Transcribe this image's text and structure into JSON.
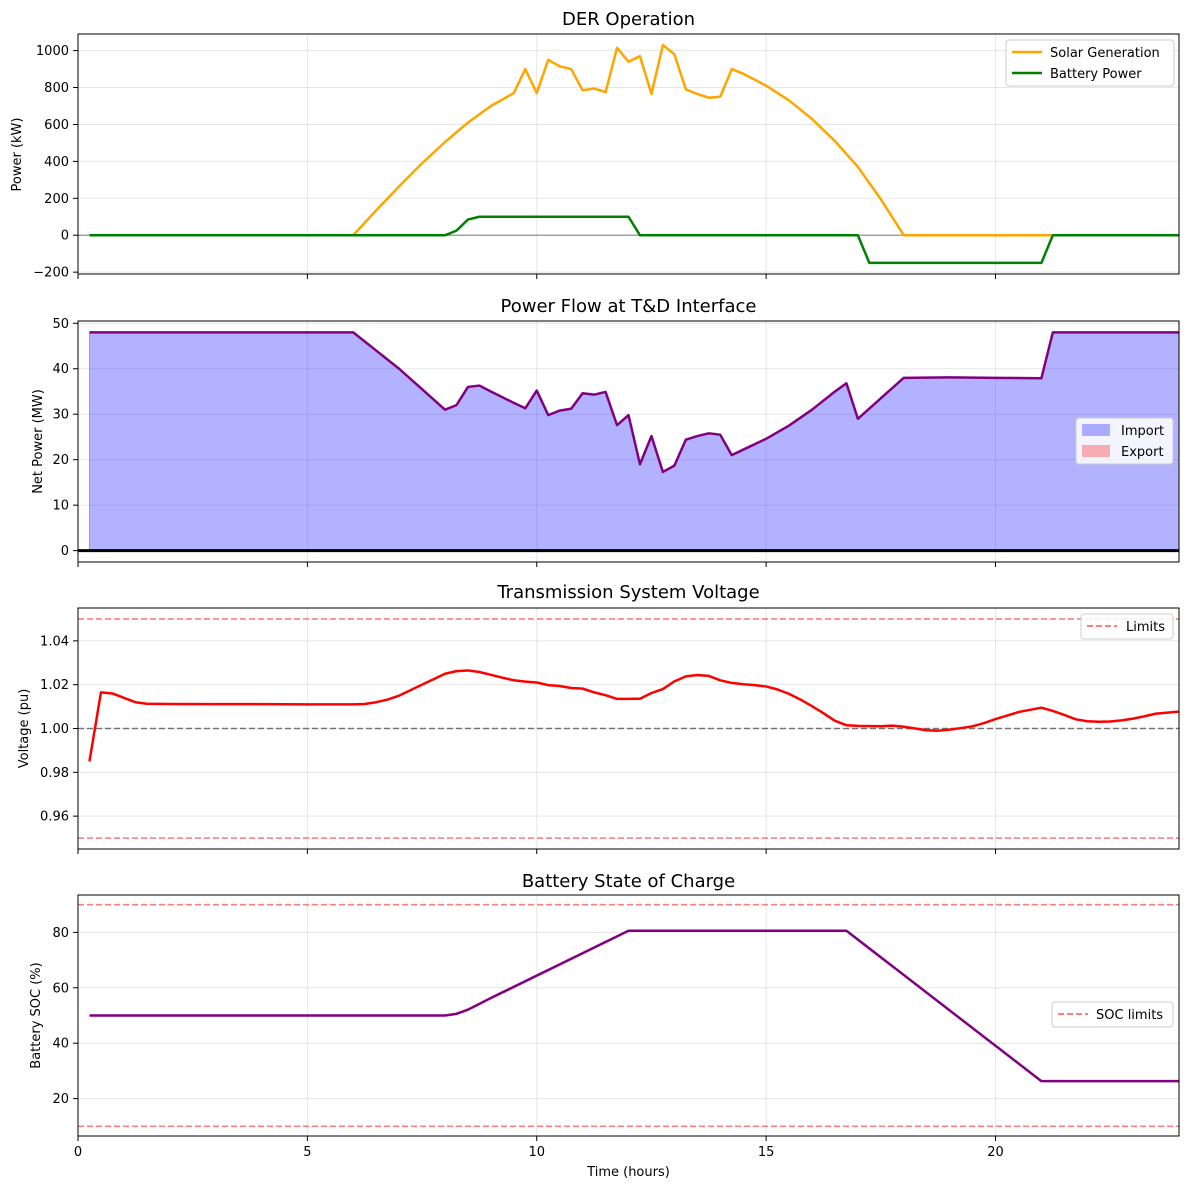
{
  "chart_data": [
    {
      "type": "line",
      "title": "DER Operation",
      "xlabel": "",
      "ylabel": "Power (kW)",
      "xlim": [
        0,
        24
      ],
      "ylim": [
        -210,
        1090
      ],
      "yticks": [
        -200,
        0,
        200,
        400,
        600,
        800,
        1000
      ],
      "ytick_labels": [
        "−200",
        "0",
        "200",
        "400",
        "600",
        "800",
        "1000"
      ],
      "grid": true,
      "legend": "top-right",
      "hlines": [
        {
          "y": 0,
          "color": "#808080",
          "style": "solid"
        }
      ],
      "series": [
        {
          "name": "Solar Generation",
          "color": "#ffa500",
          "x": [
            0.25,
            6.0,
            6.5,
            7.0,
            7.5,
            8.0,
            8.5,
            9.0,
            9.5,
            9.75,
            10.0,
            10.25,
            10.5,
            10.75,
            11.0,
            11.25,
            11.5,
            11.75,
            12.0,
            12.25,
            12.5,
            12.75,
            13.0,
            13.25,
            13.5,
            13.75,
            14.0,
            14.25,
            14.5,
            15.0,
            15.5,
            16.0,
            16.5,
            17.0,
            17.5,
            18.0,
            24.0
          ],
          "y": [
            0,
            0,
            135,
            265,
            390,
            505,
            610,
            700,
            770,
            900,
            770,
            950,
            915,
            900,
            785,
            795,
            775,
            1015,
            940,
            970,
            765,
            1030,
            980,
            790,
            765,
            745,
            750,
            900,
            875,
            810,
            730,
            630,
            510,
            370,
            195,
            0,
            0
          ]
        },
        {
          "name": "Battery Power",
          "color": "#008000",
          "x": [
            0.25,
            8.0,
            8.25,
            8.5,
            8.75,
            9.0,
            11.0,
            12.0,
            12.25,
            17.0,
            17.25,
            21.0,
            21.25,
            24.0
          ],
          "y": [
            0,
            0,
            25,
            85,
            100,
            100,
            100,
            100,
            0,
            0,
            -150,
            -150,
            0,
            0
          ]
        }
      ]
    },
    {
      "type": "area",
      "title": "Power Flow at T&D Interface",
      "xlabel": "",
      "ylabel": "Net Power (MW)",
      "xlim": [
        0,
        24
      ],
      "ylim": [
        -2.5,
        50.5
      ],
      "yticks": [
        0,
        10,
        20,
        30,
        40,
        50
      ],
      "ytick_labels": [
        "0",
        "10",
        "20",
        "30",
        "40",
        "50"
      ],
      "grid": true,
      "legend": "center-right",
      "hlines": [
        {
          "y": 0,
          "color": "#000000",
          "style": "solid"
        }
      ],
      "series": [
        {
          "name": "Net Power",
          "color": "#800080",
          "x": [
            0.25,
            6.0,
            6.5,
            7.0,
            7.5,
            8.0,
            8.25,
            8.5,
            8.75,
            9.0,
            9.5,
            9.75,
            10.0,
            10.25,
            10.5,
            10.75,
            11.0,
            11.25,
            11.5,
            11.75,
            12.0,
            12.25,
            12.5,
            12.75,
            13.0,
            13.25,
            13.5,
            13.75,
            14.0,
            14.25,
            14.5,
            15.0,
            15.5,
            16.0,
            16.5,
            16.75,
            17.0,
            17.5,
            18.0,
            19.0,
            20.0,
            21.0,
            21.25,
            24.0
          ],
          "y": [
            48,
            48,
            44,
            40,
            35.5,
            31,
            32,
            36,
            36.3,
            35,
            32.5,
            31.3,
            35.2,
            29.8,
            30.8,
            31.2,
            34.6,
            34.3,
            34.9,
            27.6,
            29.8,
            19,
            25.2,
            17.3,
            18.7,
            24.4,
            25.2,
            25.8,
            25.5,
            21,
            22.2,
            24.6,
            27.5,
            31,
            35,
            36.8,
            29,
            33.5,
            38,
            38.1,
            38,
            37.9,
            48,
            48
          ]
        }
      ],
      "fills": [
        {
          "name": "Import",
          "color": "#0000ff"
        },
        {
          "name": "Export",
          "color": "#ff0000"
        }
      ]
    },
    {
      "type": "line",
      "title": "Transmission System Voltage",
      "xlabel": "",
      "ylabel": "Voltage (pu)",
      "xlim": [
        0,
        24
      ],
      "ylim": [
        0.945,
        1.055
      ],
      "yticks": [
        0.96,
        0.98,
        1.0,
        1.02,
        1.04
      ],
      "ytick_labels": [
        "0.96",
        "0.98",
        "1.00",
        "1.02",
        "1.04"
      ],
      "grid": true,
      "legend": "top-right",
      "hlines": [
        {
          "y": 1.05,
          "color": "#ff0000",
          "style": "dashed",
          "legend": "Limits"
        },
        {
          "y": 0.95,
          "color": "#ff0000",
          "style": "dashed"
        },
        {
          "y": 1.0,
          "color": "#000000",
          "style": "dashed"
        }
      ],
      "series": [
        {
          "name": "Voltage",
          "color": "#ff0000",
          "x": [
            0.25,
            0.5,
            0.75,
            1.0,
            1.25,
            1.5,
            2.0,
            3.0,
            4.0,
            5.0,
            6.0,
            6.25,
            6.5,
            6.75,
            7.0,
            7.25,
            7.5,
            7.75,
            8.0,
            8.25,
            8.5,
            8.75,
            9.0,
            9.25,
            9.5,
            9.75,
            10.0,
            10.25,
            10.5,
            10.75,
            11.0,
            11.25,
            11.5,
            11.75,
            12.0,
            12.25,
            12.5,
            12.75,
            13.0,
            13.25,
            13.5,
            13.75,
            14.0,
            14.25,
            14.5,
            14.75,
            15.0,
            15.25,
            15.5,
            15.75,
            16.0,
            16.25,
            16.5,
            16.75,
            17.0,
            17.5,
            17.75,
            18.0,
            18.25,
            18.5,
            18.75,
            19.0,
            19.25,
            19.5,
            19.75,
            20.0,
            20.5,
            21.0,
            21.25,
            21.5,
            21.75,
            22.0,
            22.25,
            22.5,
            22.75,
            23.0,
            23.25,
            23.5,
            24.0
          ],
          "y": [
            0.985,
            1.0165,
            1.016,
            1.014,
            1.012,
            1.0113,
            1.0112,
            1.0111,
            1.0111,
            1.011,
            1.011,
            1.0112,
            1.012,
            1.0132,
            1.015,
            1.0175,
            1.02,
            1.0225,
            1.025,
            1.0262,
            1.0265,
            1.0258,
            1.0245,
            1.0232,
            1.022,
            1.0214,
            1.021,
            1.0198,
            1.0194,
            1.0185,
            1.0182,
            1.0165,
            1.0152,
            1.0135,
            1.0135,
            1.0136,
            1.0162,
            1.018,
            1.0215,
            1.0238,
            1.0244,
            1.024,
            1.022,
            1.0208,
            1.0202,
            1.0198,
            1.0192,
            1.0178,
            1.0158,
            1.0132,
            1.0102,
            1.007,
            1.0035,
            1.0015,
            1.0012,
            1.001,
            1.0013,
            1.0008,
            1.0,
            0.9992,
            0.999,
            0.9995,
            1.0002,
            1.001,
            1.0025,
            1.0043,
            1.0075,
            1.0095,
            1.008,
            1.0062,
            1.0042,
            1.0033,
            1.0031,
            1.0032,
            1.0037,
            1.0045,
            1.0056,
            1.0068,
            1.0077
          ]
        }
      ],
      "legend_entries": [
        "Limits"
      ]
    },
    {
      "type": "line",
      "title": "Battery State of Charge",
      "xlabel": "Time (hours)",
      "ylabel": "Battery SOC (%)",
      "xlim": [
        0,
        24
      ],
      "ylim": [
        6.5,
        93.5
      ],
      "xticks": [
        0,
        5,
        10,
        15,
        20
      ],
      "xtick_labels": [
        "0",
        "5",
        "10",
        "15",
        "20"
      ],
      "yticks": [
        20,
        40,
        60,
        80
      ],
      "ytick_labels": [
        "20",
        "40",
        "60",
        "80"
      ],
      "grid": true,
      "legend": "center-right",
      "hlines": [
        {
          "y": 90,
          "color": "#ff0000",
          "style": "dashed",
          "legend": "SOC limits"
        },
        {
          "y": 10,
          "color": "#ff0000",
          "style": "dashed"
        }
      ],
      "series": [
        {
          "name": "SOC",
          "color": "#800080",
          "x": [
            0.25,
            8.0,
            8.25,
            8.5,
            8.75,
            9.0,
            12.0,
            16.75,
            21.0,
            24.0
          ],
          "y": [
            50,
            50,
            50.6,
            52.1,
            54.2,
            56.3,
            80.6,
            80.6,
            26.3,
            26.3
          ]
        }
      ],
      "legend_entries": [
        "SOC limits"
      ]
    }
  ]
}
